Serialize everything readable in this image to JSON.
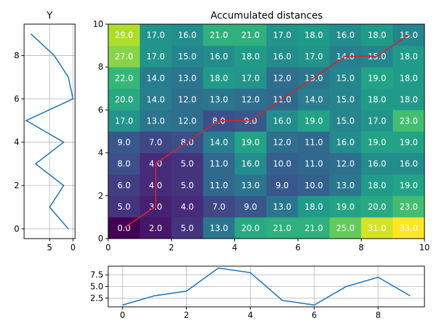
{
  "chart_data": [
    {
      "type": "heatmap",
      "title": "Accumulated distances",
      "xlabel": "",
      "ylabel": "",
      "xlim": [
        0,
        10
      ],
      "ylim": [
        0,
        10
      ],
      "x_ticks": [
        "0",
        "2",
        "4",
        "6",
        "8",
        "10"
      ],
      "y_ticks": [
        "0",
        "2",
        "4",
        "6",
        "8",
        "10"
      ],
      "colormap": "viridis",
      "value_range": [
        0,
        33
      ],
      "rows_bottom_to_top": [
        [
          0,
          2,
          5,
          13,
          20,
          21,
          21,
          25,
          31,
          33
        ],
        [
          5,
          3,
          4,
          7,
          9,
          13,
          18,
          19,
          20,
          23
        ],
        [
          6,
          4,
          5,
          11,
          13,
          9,
          10,
          13,
          18,
          19
        ],
        [
          8,
          4,
          5,
          11,
          16,
          10,
          11,
          12,
          16,
          16
        ],
        [
          9,
          7,
          8,
          14,
          19,
          12,
          11,
          16,
          19,
          19
        ],
        [
          17,
          13,
          12,
          8,
          9,
          16,
          19,
          15,
          17,
          23
        ],
        [
          20,
          14,
          12,
          13,
          12,
          11,
          14,
          15,
          18,
          18
        ],
        [
          22,
          14,
          13,
          18,
          17,
          12,
          13,
          15,
          19,
          18
        ],
        [
          27,
          17,
          15,
          16,
          18,
          16,
          17,
          14,
          15,
          18
        ],
        [
          29,
          17,
          16,
          21,
          21,
          17,
          18,
          16,
          18,
          15
        ]
      ],
      "warping_path": [
        [
          0.5,
          0.5
        ],
        [
          1.5,
          1.5
        ],
        [
          1.5,
          2.5
        ],
        [
          1.5,
          3.5
        ],
        [
          2.5,
          4.5
        ],
        [
          3.5,
          5.5
        ],
        [
          4.5,
          5.5
        ],
        [
          5.5,
          6.5
        ],
        [
          6.5,
          7.5
        ],
        [
          7.5,
          8.5
        ],
        [
          8.5,
          8.5
        ],
        [
          9.5,
          9.5
        ]
      ],
      "path_color": "#d62728"
    },
    {
      "type": "line",
      "title": "Y",
      "orientation": "vertical",
      "x_ticks": [
        "5",
        "0"
      ],
      "y_ticks": [
        "0",
        "2",
        "4",
        "6",
        "8"
      ],
      "xlim": [
        10.45,
        -0.45
      ],
      "ylim": [
        -0.45,
        9.45
      ],
      "grid": true,
      "series": [
        {
          "x": [
            1,
            5,
            2,
            8,
            2,
            10,
            0,
            1,
            4,
            9
          ],
          "y": [
            0,
            1,
            2,
            3,
            4,
            5,
            6,
            7,
            8,
            9
          ]
        }
      ],
      "line_color": "#1f77b4"
    },
    {
      "type": "line",
      "title": "",
      "x_ticks": [
        "0",
        "2",
        "4",
        "6",
        "8"
      ],
      "y_ticks": [
        "2.5",
        "5.0",
        "7.5"
      ],
      "xlim": [
        -0.45,
        9.45
      ],
      "ylim": [
        0.6,
        9.4
      ],
      "grid": true,
      "series": [
        {
          "x": [
            0,
            1,
            2,
            3,
            4,
            5,
            6,
            7,
            8,
            9
          ],
          "y": [
            1,
            3,
            4,
            9,
            8,
            2,
            1,
            5,
            7,
            3
          ]
        }
      ],
      "line_color": "#1f77b4"
    }
  ]
}
